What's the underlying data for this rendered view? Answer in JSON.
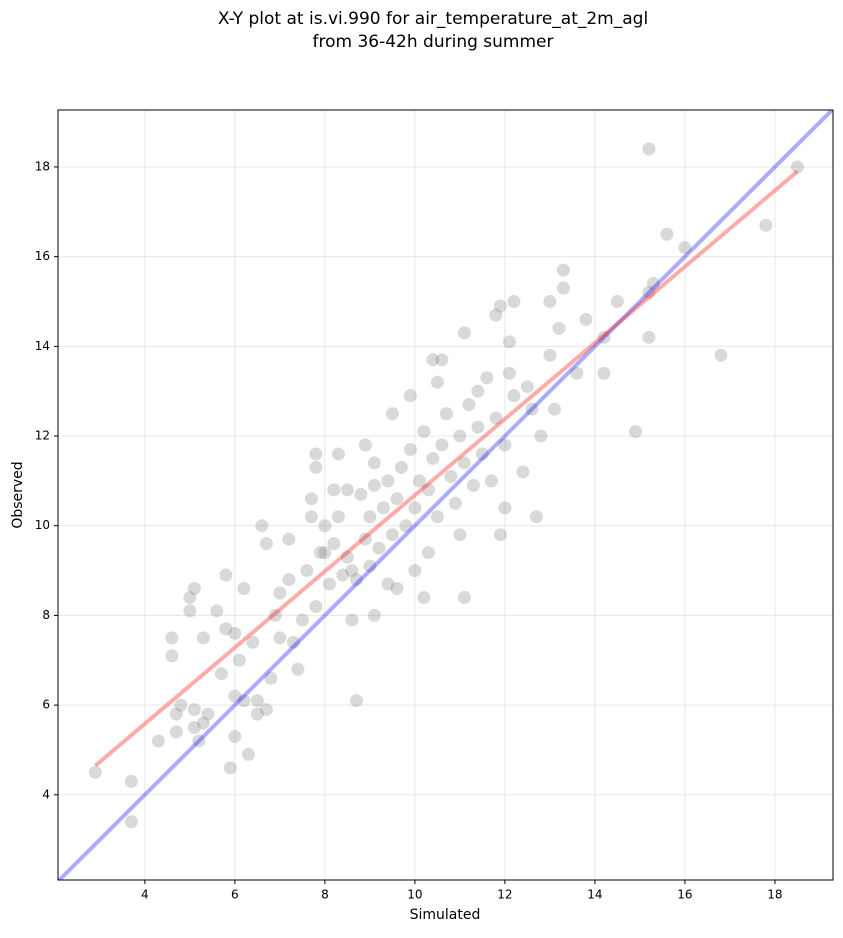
{
  "chart_data": {
    "type": "scatter",
    "title": [
      "X-Y plot at is.vi.990 for air_temperature_at_2m_agl",
      "from 36-42h during summer"
    ],
    "xlabel": "Simulated",
    "ylabel": "Observed",
    "xlim": [
      2.07,
      19.29
    ],
    "ylim": [
      2.1,
      19.27
    ],
    "xticks": [
      4,
      6,
      8,
      10,
      12,
      14,
      16,
      18
    ],
    "yticks": [
      4,
      6,
      8,
      10,
      12,
      14,
      16,
      18
    ],
    "grid": true,
    "color": "#808080",
    "x": [
      2.9,
      3.7,
      3.7,
      4.3,
      4.6,
      4.6,
      4.7,
      4.7,
      4.8,
      5.1,
      5.0,
      5.0,
      5.1,
      5.1,
      5.2,
      5.3,
      5.4,
      5.3,
      5.6,
      5.8,
      5.8,
      5.7,
      5.9,
      6.0,
      6.0,
      6.1,
      6.2,
      6.2,
      6.3,
      6.5,
      6.5,
      6.6,
      6.7,
      6.7,
      6.8,
      7.0,
      7.2,
      7.4,
      7.7,
      7.8,
      7.8,
      8.3,
      8.7,
      9.1,
      9.1,
      9.5,
      9.9,
      10.2,
      10.4,
      10.6,
      11.1,
      11.1,
      11.4,
      11.8,
      11.9,
      12.2,
      12.7,
      13.0,
      13.3,
      13.3,
      13.6,
      13.8,
      14.2,
      14.2,
      14.5,
      14.9,
      15.2,
      15.2,
      15.2,
      15.6,
      16.0,
      16.8,
      17.8,
      18.5,
      15.3,
      12.1,
      12.6,
      11.9,
      12.0,
      10.3,
      9.6,
      8.0,
      8.2,
      7.0,
      7.2,
      7.5,
      7.6,
      7.8,
      7.9,
      8.0,
      8.1,
      8.2,
      8.3,
      8.4,
      8.5,
      8.5,
      8.6,
      8.7,
      8.8,
      8.9,
      9.0,
      9.0,
      9.1,
      9.2,
      9.3,
      9.4,
      9.5,
      9.6,
      9.7,
      9.8,
      9.9,
      10.0,
      10.1,
      10.2,
      10.3,
      10.4,
      10.5,
      10.6,
      10.7,
      10.8,
      10.9,
      11.0,
      11.1,
      11.2,
      11.3,
      11.4,
      11.5,
      11.6,
      11.7,
      11.8,
      12.0,
      12.2,
      12.4,
      12.5,
      12.8,
      13.0,
      13.1,
      7.3,
      6.9,
      6.4,
      6.0,
      8.9,
      10.0,
      10.5,
      9.4,
      11.0,
      8.6,
      7.7,
      12.1,
      13.2
    ],
    "values": [
      4.5,
      4.3,
      3.4,
      5.2,
      7.5,
      7.1,
      5.4,
      5.8,
      6.0,
      8.6,
      8.4,
      8.1,
      5.5,
      5.9,
      5.2,
      5.6,
      5.8,
      7.5,
      8.1,
      8.9,
      7.7,
      6.7,
      4.6,
      5.3,
      6.2,
      7.0,
      6.1,
      8.6,
      4.9,
      6.1,
      5.8,
      10.0,
      9.6,
      5.9,
      6.6,
      7.5,
      9.7,
      6.8,
      10.6,
      11.6,
      11.3,
      11.6,
      6.1,
      8.0,
      11.4,
      12.5,
      12.9,
      8.4,
      13.7,
      13.7,
      14.3,
      8.4,
      13.0,
      14.7,
      14.9,
      15.0,
      10.2,
      15.0,
      15.7,
      15.3,
      13.4,
      14.6,
      14.2,
      13.4,
      15.0,
      12.1,
      18.4,
      15.2,
      14.2,
      16.5,
      16.2,
      13.8,
      16.7,
      18.0,
      15.4,
      13.4,
      12.6,
      9.8,
      10.4,
      9.4,
      8.6,
      9.4,
      10.8,
      8.5,
      8.8,
      7.9,
      9.0,
      8.2,
      9.4,
      10.0,
      8.7,
      9.6,
      10.2,
      8.9,
      9.3,
      10.8,
      9.0,
      8.8,
      10.7,
      9.7,
      10.2,
      9.1,
      10.9,
      9.5,
      10.4,
      11.0,
      9.8,
      10.6,
      11.3,
      10.0,
      11.7,
      10.4,
      11.0,
      12.1,
      10.8,
      11.5,
      10.2,
      11.8,
      12.5,
      11.1,
      10.5,
      12.0,
      11.4,
      12.7,
      10.9,
      12.2,
      11.6,
      13.3,
      11.0,
      12.4,
      11.8,
      12.9,
      11.2,
      13.1,
      12.0,
      13.8,
      12.6,
      7.4,
      8.0,
      7.4,
      7.6,
      11.8,
      9.0,
      13.2,
      8.7,
      9.8,
      7.9,
      10.2,
      14.1,
      14.4
    ],
    "lines": [
      {
        "color": "#0000ff",
        "x": [
          2.07,
          19.29
        ],
        "values": [
          2.07,
          19.29
        ]
      },
      {
        "color": "#ff0000",
        "x": [
          2.9,
          18.5
        ],
        "values": [
          4.65,
          17.9
        ]
      }
    ]
  }
}
